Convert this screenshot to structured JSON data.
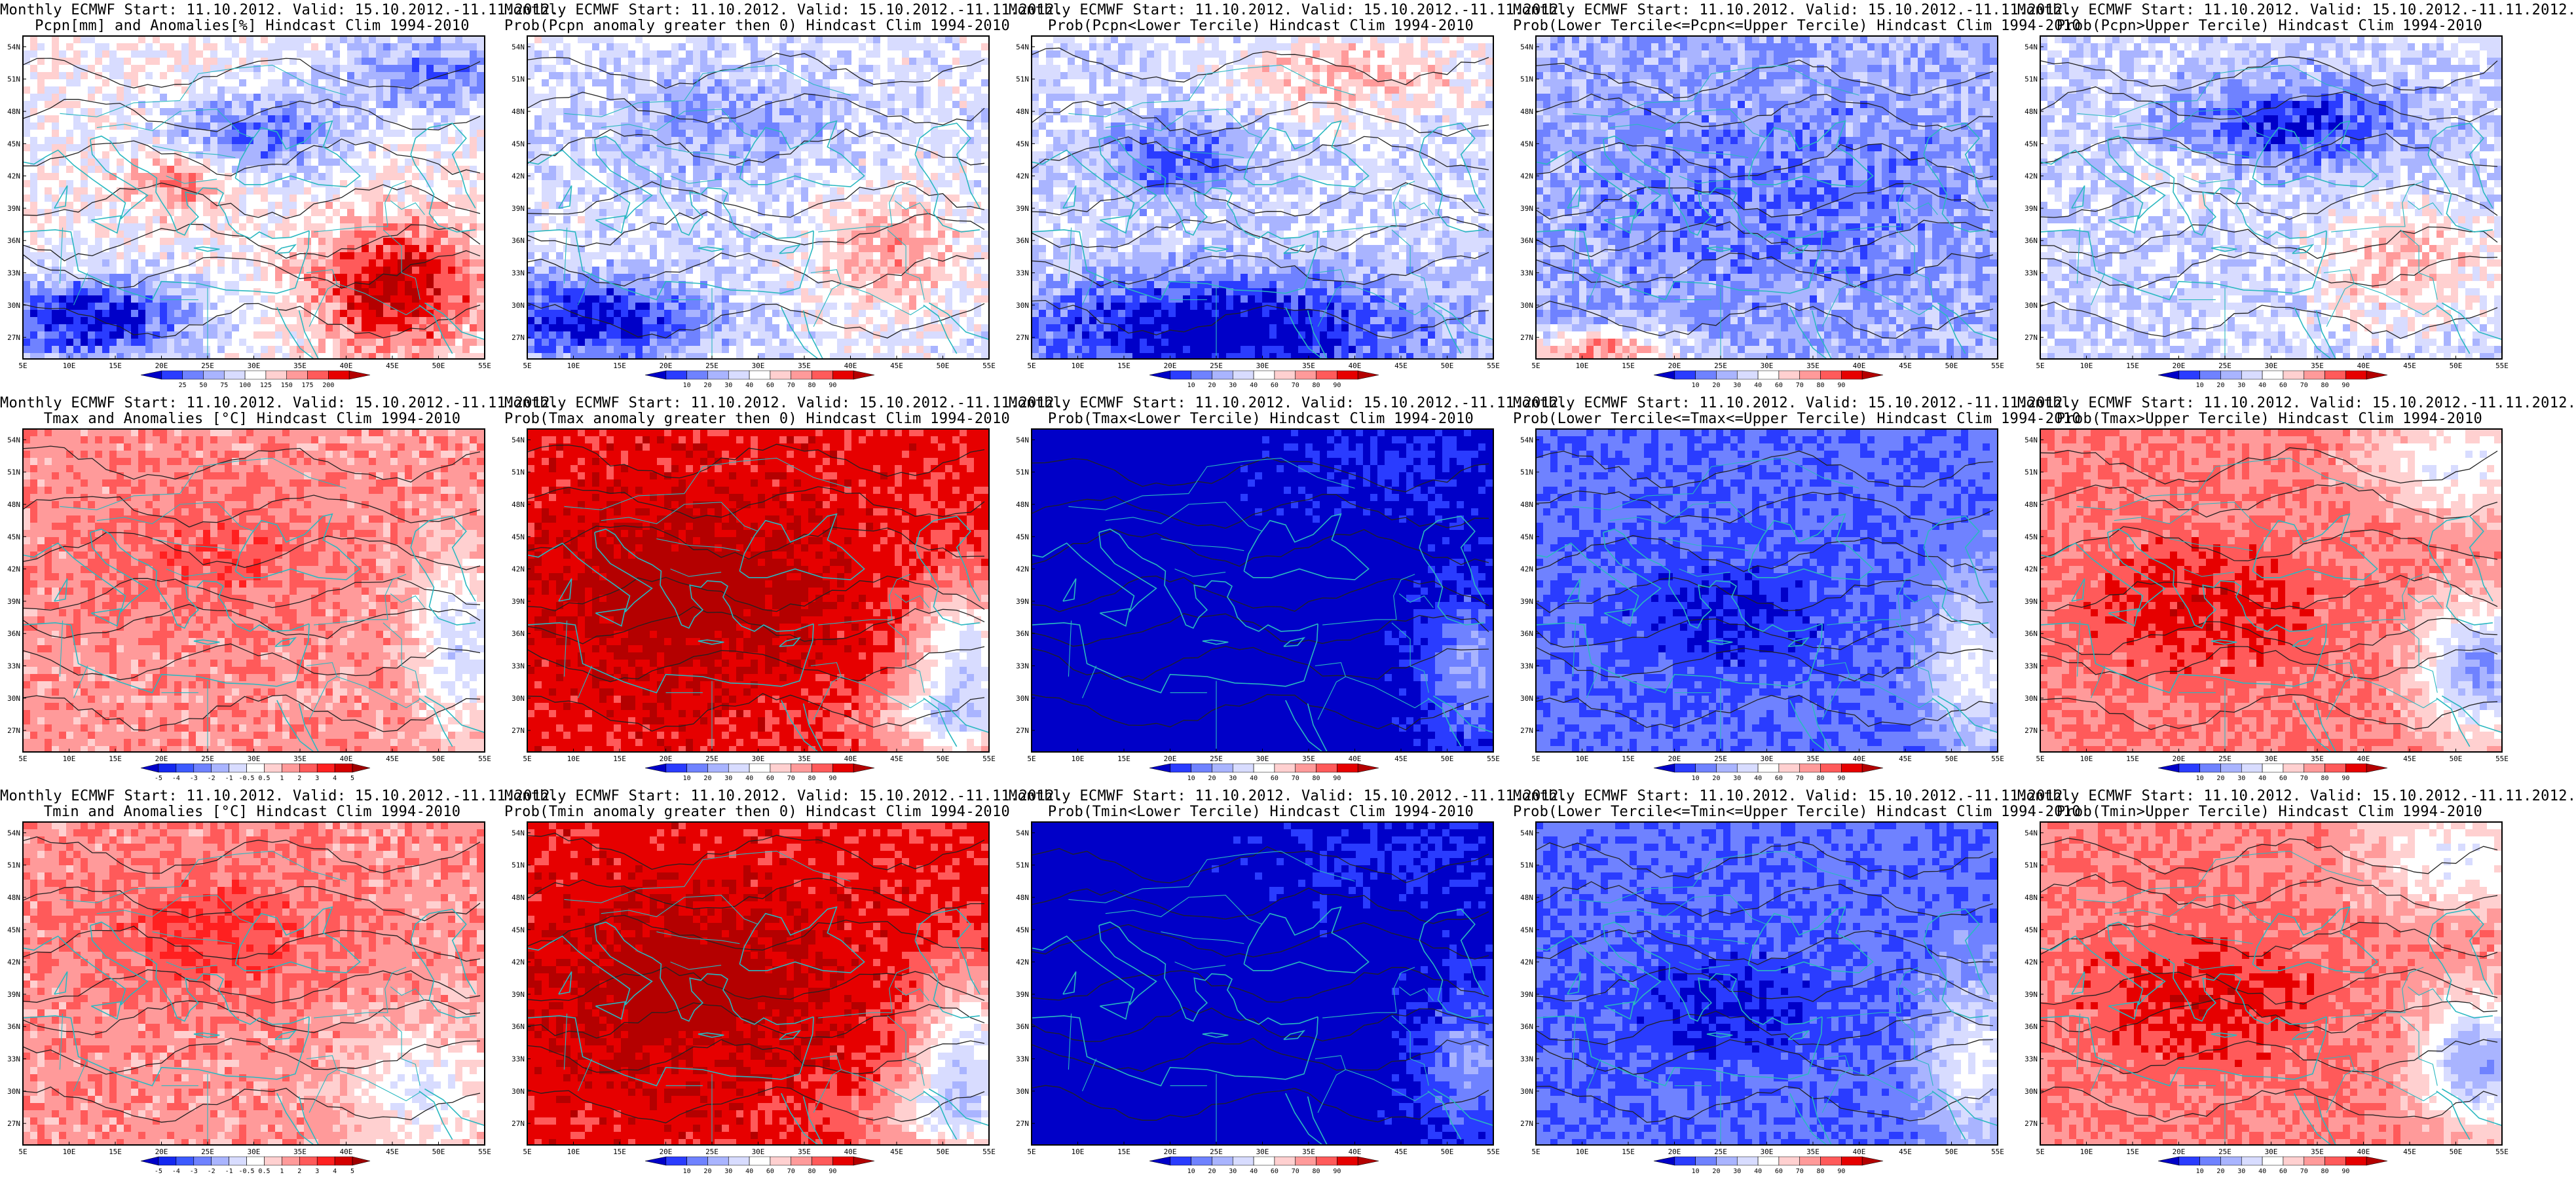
{
  "common": {
    "lat_labels": [
      "54N",
      "51N",
      "48N",
      "45N",
      "42N",
      "39N",
      "36N",
      "33N",
      "30N",
      "27N"
    ],
    "lon_labels": [
      "5E",
      "10E",
      "15E",
      "20E",
      "25E",
      "30E",
      "35E",
      "40E",
      "45E",
      "50E",
      "55E"
    ],
    "extent": {
      "lon": [
        5,
        55
      ],
      "lat": [
        25,
        55
      ]
    }
  },
  "colorbars": {
    "prec_anom": {
      "ticks": [
        "25",
        "50",
        "75",
        "100",
        "125",
        "150",
        "175",
        "200"
      ],
      "colors": [
        "#0000c8",
        "#2a3cff",
        "#6f82ff",
        "#a9b4ff",
        "#d8dcff",
        "#ffffff",
        "#ffd0d0",
        "#ff9a9a",
        "#ff5a5a",
        "#e60000",
        "#b40000"
      ]
    },
    "temp_anom": {
      "ticks": [
        "-5",
        "-4",
        "-3",
        "-2",
        "-1",
        "-0.5",
        "0.5",
        "1",
        "2",
        "3",
        "4",
        "5"
      ],
      "colors": [
        "#0000c8",
        "#1428f0",
        "#3c5aff",
        "#6f82ff",
        "#a9b4ff",
        "#d8dcff",
        "#ffffff",
        "#ffd0d0",
        "#ff9a9a",
        "#ff5a5a",
        "#ff2020",
        "#d40000",
        "#a00000"
      ]
    },
    "prob": {
      "ticks": [
        "10",
        "20",
        "30",
        "40",
        "60",
        "70",
        "80",
        "90"
      ],
      "colors": [
        "#0000c8",
        "#2a3cff",
        "#6f82ff",
        "#a9b4ff",
        "#d8dcff",
        "#ffffff",
        "#ffd0d0",
        "#ff9a9a",
        "#ff5a5a",
        "#e60000",
        "#b40000"
      ]
    }
  },
  "panels": [
    {
      "title1": "Monthly ECMWF Start: 11.10.2012. Valid: 15.10.2012.-11.11.2012.",
      "title2": "Pcpn[mm] and Anomalies[%] Hindcast Clim 1994-2010",
      "bar": "prec_anom",
      "pattern": "prec_anom"
    },
    {
      "title1": "Monthly ECMWF Start: 11.10.2012. Valid: 15.10.2012.-11.11.2012.",
      "title2": "Prob(Pcpn anomaly greater then 0) Hindcast Clim 1994-2010",
      "bar": "prob",
      "pattern": "prec_gt0"
    },
    {
      "title1": "Monthly ECMWF Start: 11.10.2012. Valid: 15.10.2012.-11.11.2012.",
      "title2": "Prob(Pcpn<Lower Tercile) Hindcast Clim 1994-2010",
      "bar": "prob",
      "pattern": "prec_low"
    },
    {
      "title1": "Monthly ECMWF Start: 11.10.2012. Valid: 15.10.2012.-11.11.2012.",
      "title2": "Prob(Lower Tercile<=Pcpn<=Upper Tercile) Hindcast Clim 1994-2010",
      "bar": "prob",
      "pattern": "prec_mid"
    },
    {
      "title1": "Monthly ECMWF Start: 11.10.2012. Valid: 15.10.2012.-11.11.2012.",
      "title2": "Prob(Pcpn>Upper Tercile) Hindcast Clim 1994-2010",
      "bar": "prob",
      "pattern": "prec_up"
    },
    {
      "title1": "Monthly ECMWF Start: 11.10.2012. Valid: 15.10.2012.-11.11.2012.",
      "title2": "Tmax and Anomalies [°C] Hindcast Clim 1994-2010",
      "bar": "temp_anom",
      "pattern": "t_anom"
    },
    {
      "title1": "Monthly ECMWF Start: 11.10.2012. Valid: 15.10.2012.-11.11.2012.",
      "title2": "Prob(Tmax anomaly greater then 0) Hindcast Clim 1994-2010",
      "bar": "prob",
      "pattern": "t_gt0"
    },
    {
      "title1": "Monthly ECMWF Start: 11.10.2012. Valid: 15.10.2012.-11.11.2012.",
      "title2": "Prob(Tmax<Lower Tercile) Hindcast Clim 1994-2010",
      "bar": "prob",
      "pattern": "t_low"
    },
    {
      "title1": "Monthly ECMWF Start: 11.10.2012. Valid: 15.10.2012.-11.11.2012.",
      "title2": "Prob(Lower Tercile<=Tmax<=Upper Tercile) Hindcast Clim 1994-2010",
      "bar": "prob",
      "pattern": "t_mid"
    },
    {
      "title1": "Monthly ECMWF Start: 11.10.2012. Valid: 15.10.2012.-11.11.2012.",
      "title2": "Prob(Tmax>Upper Tercile) Hindcast Clim 1994-2010",
      "bar": "prob",
      "pattern": "t_up"
    },
    {
      "title1": "Monthly ECMWF Start: 11.10.2012. Valid: 15.10.2012.-11.11.2012.",
      "title2": "Tmin and Anomalies [°C] Hindcast Clim 1994-2010",
      "bar": "temp_anom",
      "pattern": "tn_anom"
    },
    {
      "title1": "Monthly ECMWF Start: 11.10.2012. Valid: 15.10.2012.-11.11.2012.",
      "title2": "Prob(Tmin anomaly greater then 0) Hindcast Clim 1994-2010",
      "bar": "prob",
      "pattern": "t_gt0"
    },
    {
      "title1": "Monthly ECMWF Start: 11.10.2012. Valid: 15.10.2012.-11.11.2012.",
      "title2": "Prob(Tmin<Lower Tercile) Hindcast Clim 1994-2010",
      "bar": "prob",
      "pattern": "t_low"
    },
    {
      "title1": "Monthly ECMWF Start: 11.10.2012. Valid: 15.10.2012.-11.11.2012.",
      "title2": "Prob(Lower Tercile<=Tmin<=Upper Tercile) Hindcast Clim 1994-2010",
      "bar": "prob",
      "pattern": "t_mid"
    },
    {
      "title1": "Monthly ECMWF Start: 11.10.2012. Valid: 15.10.2012.-11.11.2012.",
      "title2": "Prob(Tmin>Upper Tercile) Hindcast Clim 1994-2010",
      "bar": "prob",
      "pattern": "t_up"
    }
  ]
}
